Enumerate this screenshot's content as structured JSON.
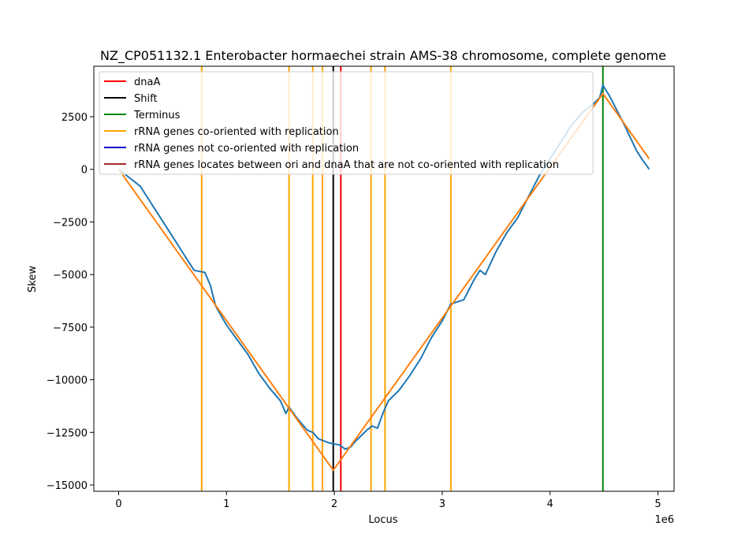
{
  "chart_data": {
    "type": "line",
    "title": "NZ_CP051132.1 Enterobacter hormaechei strain AMS-38 chromosome, complete genome",
    "xlabel": "Locus",
    "ylabel": "Skew",
    "x_offset_label": "1e6",
    "xlim": [
      -230000,
      5150000
    ],
    "ylim": [
      -15300,
      4900
    ],
    "x_ticks": [
      {
        "value": 0,
        "label": "0"
      },
      {
        "value": 1000000,
        "label": "1"
      },
      {
        "value": 2000000,
        "label": "2"
      },
      {
        "value": 3000000,
        "label": "3"
      },
      {
        "value": 4000000,
        "label": "4"
      },
      {
        "value": 5000000,
        "label": "5"
      }
    ],
    "y_ticks": [
      {
        "value": 2500,
        "label": "2500"
      },
      {
        "value": 0,
        "label": "0"
      },
      {
        "value": -2500,
        "label": "−2500"
      },
      {
        "value": -5000,
        "label": "−5000"
      },
      {
        "value": -7500,
        "label": "−7500"
      },
      {
        "value": -10000,
        "label": "−10000"
      },
      {
        "value": -12500,
        "label": "−12500"
      },
      {
        "value": -15000,
        "label": "−15000"
      }
    ],
    "legend": {
      "placement": "top-left",
      "entries": [
        {
          "label": "dnaA",
          "color": "#ff0000"
        },
        {
          "label": "Shift",
          "color": "#000000"
        },
        {
          "label": "Terminus",
          "color": "#008000"
        },
        {
          "label": "rRNA genes co-oriented with replication",
          "color": "#ffa500"
        },
        {
          "label": "rRNA genes not co-oriented with replication",
          "color": "#0000cd"
        },
        {
          "label": "rRNA genes locates between ori and dnaA that are not co-oriented with replication",
          "color": "#a52a2a"
        }
      ]
    },
    "vertical_lines": [
      {
        "kind": "rRNA co-oriented",
        "x": 770000,
        "color": "#ffa500"
      },
      {
        "kind": "rRNA co-oriented",
        "x": 1580000,
        "color": "#ffa500"
      },
      {
        "kind": "rRNA co-oriented",
        "x": 1800000,
        "color": "#ffa500"
      },
      {
        "kind": "rRNA co-oriented",
        "x": 1890000,
        "color": "#ffa500"
      },
      {
        "kind": "rRNA co-oriented",
        "x": 2340000,
        "color": "#ffa500"
      },
      {
        "kind": "rRNA co-oriented",
        "x": 2470000,
        "color": "#ffa500"
      },
      {
        "kind": "rRNA co-oriented",
        "x": 3080000,
        "color": "#ffa500"
      },
      {
        "kind": "Shift",
        "x": 1990000,
        "color": "#000000"
      },
      {
        "kind": "dnaA",
        "x": 2060000,
        "color": "#ff0000"
      },
      {
        "kind": "Terminus",
        "x": 4490000,
        "color": "#008000"
      }
    ],
    "series": [
      {
        "kind": "skew",
        "color": "#1f77b4",
        "x": [
          0,
          100000,
          200000,
          300000,
          400000,
          500000,
          600000,
          700000,
          800000,
          850000,
          900000,
          1000000,
          1100000,
          1200000,
          1300000,
          1400000,
          1500000,
          1550000,
          1580000,
          1650000,
          1700000,
          1750000,
          1800000,
          1850000,
          1900000,
          1950000,
          2000000,
          2050000,
          2100000,
          2150000,
          2200000,
          2300000,
          2350000,
          2400000,
          2450000,
          2500000,
          2600000,
          2700000,
          2800000,
          2900000,
          3000000,
          3080000,
          3200000,
          3300000,
          3350000,
          3400000,
          3500000,
          3600000,
          3700000,
          3800000,
          3900000,
          4000000,
          4100000,
          4200000,
          4300000,
          4400000,
          4460000,
          4490000,
          4550000,
          4600000,
          4700000,
          4800000,
          4850000,
          4920000
        ],
        "values": [
          0,
          -400,
          -800,
          -1600,
          -2400,
          -3200,
          -4000,
          -4800,
          -4900,
          -5500,
          -6500,
          -7400,
          -8100,
          -8800,
          -9700,
          -10400,
          -11000,
          -11600,
          -11300,
          -11800,
          -12100,
          -12400,
          -12500,
          -12800,
          -12900,
          -13000,
          -13050,
          -13100,
          -13300,
          -13200,
          -12900,
          -12400,
          -12200,
          -12300,
          -11600,
          -11000,
          -10500,
          -9800,
          -9000,
          -8000,
          -7200,
          -6400,
          -6200,
          -5200,
          -4800,
          -5000,
          -3900,
          -3000,
          -2300,
          -1300,
          -300,
          500,
          1300,
          2100,
          2700,
          3100,
          3400,
          4000,
          3500,
          3000,
          2000,
          900,
          500,
          0
        ]
      },
      {
        "kind": "fit",
        "color": "#ff7f0e",
        "x": [
          0,
          1990000,
          4490000,
          4920000
        ],
        "values": [
          0,
          -14300,
          3600,
          500
        ]
      }
    ]
  }
}
